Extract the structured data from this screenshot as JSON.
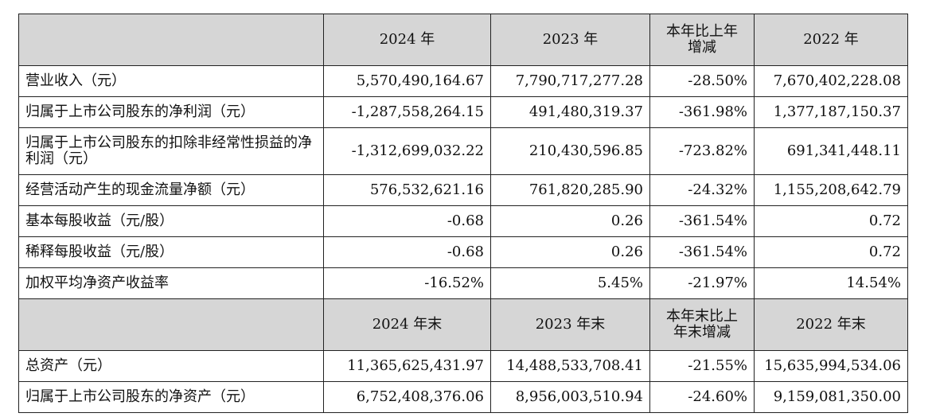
{
  "top_fragment": "",
  "header1": {
    "col1": "2024 年",
    "col2": "2023 年",
    "col3": "本年比上年\n增减",
    "col4": "2022 年"
  },
  "rows1": [
    {
      "label": "营业收入（元）",
      "v2024": "5,570,490,164.67",
      "v2023": "7,790,717,277.28",
      "change": "-28.50%",
      "v2022": "7,670,402,228.08"
    },
    {
      "label": "归属于上市公司股东的净利润（元）",
      "v2024": "-1,287,558,264.15",
      "v2023": "491,480,319.37",
      "change": "-361.98%",
      "v2022": "1,377,187,150.37"
    },
    {
      "label": "归属于上市公司股东的扣除非经常性损益的净利润（元）",
      "v2024": "-1,312,699,032.22",
      "v2023": "210,430,596.85",
      "change": "-723.82%",
      "v2022": "691,341,448.11"
    },
    {
      "label": "经营活动产生的现金流量净额（元）",
      "v2024": "576,532,621.16",
      "v2023": "761,820,285.90",
      "change": "-24.32%",
      "v2022": "1,155,208,642.79"
    },
    {
      "label": "基本每股收益（元/股）",
      "v2024": "-0.68",
      "v2023": "0.26",
      "change": "-361.54%",
      "v2022": "0.72"
    },
    {
      "label": "稀释每股收益（元/股）",
      "v2024": "-0.68",
      "v2023": "0.26",
      "change": "-361.54%",
      "v2022": "0.72"
    },
    {
      "label": "加权平均净资产收益率",
      "v2024": "-16.52%",
      "v2023": "5.45%",
      "change": "-21.97%",
      "v2022": "14.54%"
    }
  ],
  "header2": {
    "col1": "2024 年末",
    "col2": "2023 年末",
    "col3": "本年末比上\n年末增减",
    "col4": "2022 年末"
  },
  "rows2": [
    {
      "label": "总资产（元）",
      "v2024": "11,365,625,431.97",
      "v2023": "14,488,533,708.41",
      "change": "-21.55%",
      "v2022": "15,635,994,534.06"
    },
    {
      "label": "归属于上市公司股东的净资产（元）",
      "v2024": "6,752,408,376.06",
      "v2023": "8,956,003,510.94",
      "change": "-24.60%",
      "v2022": "9,159,081,350.00"
    }
  ]
}
